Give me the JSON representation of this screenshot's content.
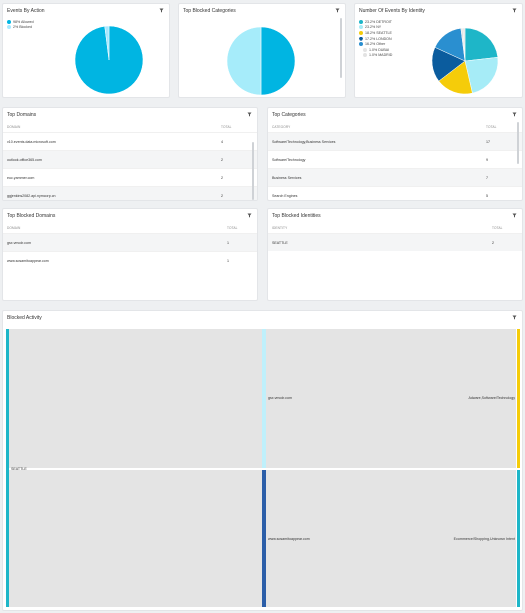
{
  "panels": {
    "events_by_action": {
      "title": "Events By Action",
      "legend": [
        {
          "label": "98% Allowed",
          "color": "#00b5e2"
        },
        {
          "label": "2% Blocked",
          "color": "#a6e8ff"
        }
      ]
    },
    "top_blocked_categories": {
      "title": "Top Blocked Categories"
    },
    "events_by_identity": {
      "title": "Number Of Events By Identity",
      "legend": [
        {
          "label": "23.2% DETROIT",
          "color": "#1eb6c8"
        },
        {
          "label": "23.2% NY",
          "color": "#a6ecf7"
        },
        {
          "label": "18.2% SEATTLE",
          "color": "#f5cc0a"
        },
        {
          "label": "17.2% LONDON",
          "color": "#0b5c9e"
        },
        {
          "label": "16.2% Other",
          "color": "#2a8fd0"
        },
        {
          "label": "1.0% DUBAI",
          "color": "#e3e3e3"
        },
        {
          "label": "1.0% MADRID",
          "color": "#e3e3e3"
        }
      ]
    },
    "top_domains": {
      "title": "Top Domains",
      "columns": [
        "DOMAIN",
        "TOTAL"
      ],
      "rows": [
        {
          "name": "v10.events.data.microsoft.com",
          "total": "4"
        },
        {
          "name": "outlook.office365.com",
          "total": "2"
        },
        {
          "name": "euc.yammer.com",
          "total": "2"
        },
        {
          "name": "ggjenkins2082.api.nymcorp.cn",
          "total": "2"
        }
      ]
    },
    "top_categories": {
      "title": "Top Categories",
      "columns": [
        "CATEGORY",
        "TOTAL"
      ],
      "rows": [
        {
          "name": "Software/Technology,Business Services",
          "total": "17"
        },
        {
          "name": "Software/Technology",
          "total": "9"
        },
        {
          "name": "Business Services",
          "total": "7"
        },
        {
          "name": "Search Engines",
          "total": "5"
        }
      ]
    },
    "top_blocked_domains": {
      "title": "Top Blocked Domains",
      "columns": [
        "DOMAIN",
        "TOTAL"
      ],
      "rows": [
        {
          "name": "gsx.vmcdr.com",
          "total": "1"
        },
        {
          "name": "www.sosamitoappear.com",
          "total": "1"
        }
      ]
    },
    "top_blocked_identities": {
      "title": "Top Blocked Identities",
      "columns": [
        "IDENTITY",
        "TOTAL"
      ],
      "rows": [
        {
          "name": "SEATTLE",
          "total": "2"
        }
      ]
    },
    "blocked_activity": {
      "title": "Blocked Activity",
      "source": "SEATTLE",
      "flows": [
        {
          "domain": "gsx.vmcdr.com",
          "category": "Adware,Software/Technology"
        },
        {
          "domain": "www.sosamitoappear.com",
          "category": "Ecommerce/Shopping,Unknown Intent"
        }
      ]
    }
  },
  "chart_data": [
    {
      "type": "pie",
      "title": "Events By Action",
      "labels": [
        "Allowed",
        "Blocked"
      ],
      "values": [
        98,
        2
      ],
      "colors": [
        "#00b5e2",
        "#a6e8ff"
      ]
    },
    {
      "type": "pie",
      "title": "Top Blocked Categories",
      "values": [
        50,
        50
      ],
      "colors": [
        "#00b5e2",
        "#a6ecfa"
      ]
    },
    {
      "type": "pie",
      "title": "Number Of Events By Identity",
      "labels": [
        "DETROIT",
        "NY",
        "SEATTLE",
        "LONDON",
        "Other",
        "DUBAI",
        "MADRID"
      ],
      "values": [
        23.2,
        23.2,
        18.2,
        17.2,
        16.2,
        1.0,
        1.0
      ],
      "colors": [
        "#1eb6c8",
        "#a6ecf7",
        "#f5cc0a",
        "#0b5c9e",
        "#2a8fd0",
        "#e3e3e3",
        "#e3e3e3"
      ]
    }
  ]
}
